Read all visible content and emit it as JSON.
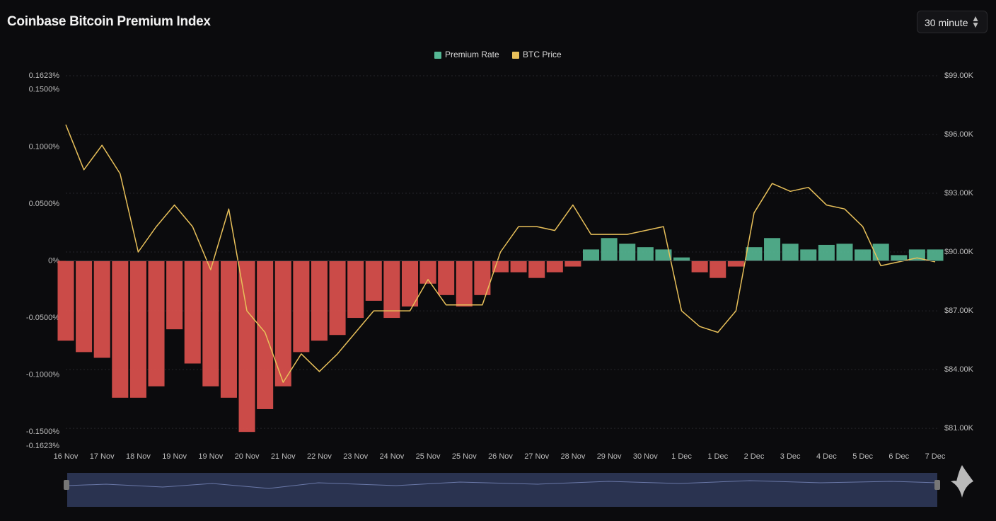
{
  "chart_data": {
    "type": "bar-line",
    "title": "Coinbase Bitcoin Premium Index",
    "interval": "30 minute",
    "x": [
      0,
      0.5,
      1,
      1.5,
      2,
      2.5,
      3,
      3.5,
      4,
      4.5,
      5,
      5.5,
      6,
      6.5,
      7,
      7.5,
      8,
      8.5,
      9,
      9.5,
      10,
      10.5,
      11,
      11.5,
      12,
      12.5,
      13,
      13.5,
      14,
      14.5,
      15,
      15.5,
      16,
      16.5,
      17,
      17.5,
      18,
      18.5,
      19,
      19.5,
      20,
      20.5,
      21,
      21.5,
      22,
      22.5,
      23,
      23.5,
      24
    ],
    "xlim": [
      0,
      24
    ],
    "xticks": [
      {
        "value": 0,
        "label": "16 Nov"
      },
      {
        "value": 1,
        "label": "17 Nov"
      },
      {
        "value": 2,
        "label": "18 Nov"
      },
      {
        "value": 3,
        "label": "19 Nov"
      },
      {
        "value": 4,
        "label": "19 Nov"
      },
      {
        "value": 5,
        "label": "20 Nov"
      },
      {
        "value": 6,
        "label": "21 Nov"
      },
      {
        "value": 7,
        "label": "22 Nov"
      },
      {
        "value": 8,
        "label": "23 Nov"
      },
      {
        "value": 9,
        "label": "24 Nov"
      },
      {
        "value": 10,
        "label": "25 Nov"
      },
      {
        "value": 11,
        "label": "25 Nov"
      },
      {
        "value": 12,
        "label": "26 Nov"
      },
      {
        "value": 13,
        "label": "27 Nov"
      },
      {
        "value": 14,
        "label": "28 Nov"
      },
      {
        "value": 15,
        "label": "29 Nov"
      },
      {
        "value": 16,
        "label": "30 Nov"
      },
      {
        "value": 17,
        "label": "1 Dec"
      },
      {
        "value": 18,
        "label": "1 Dec"
      },
      {
        "value": 19,
        "label": "2 Dec"
      },
      {
        "value": 20,
        "label": "3 Dec"
      },
      {
        "value": 21,
        "label": "4 Dec"
      },
      {
        "value": 22,
        "label": "5 Dec"
      },
      {
        "value": 23,
        "label": "6 Dec"
      },
      {
        "value": 24,
        "label": "7 Dec"
      }
    ],
    "ylim": [
      -0.1623,
      0.1623
    ],
    "yticks": [
      {
        "value": 0.1623,
        "label": "0.1623%"
      },
      {
        "value": 0.15,
        "label": "0.1500%"
      },
      {
        "value": 0.1,
        "label": "0.1000%"
      },
      {
        "value": 0.05,
        "label": "0.0500%"
      },
      {
        "value": 0,
        "label": "0%"
      },
      {
        "value": -0.05,
        "label": "-0.0500%"
      },
      {
        "value": -0.1,
        "label": "-0.1000%"
      },
      {
        "value": -0.15,
        "label": "-0.1500%"
      },
      {
        "value": -0.1623,
        "label": "-0.1623%"
      }
    ],
    "y2lim": [
      80100,
      99000
    ],
    "y2ticks": [
      {
        "value": 99000,
        "label": "$99.00K"
      },
      {
        "value": 96000,
        "label": "$96.00K"
      },
      {
        "value": 93000,
        "label": "$93.00K"
      },
      {
        "value": 90000,
        "label": "$90.00K"
      },
      {
        "value": 87000,
        "label": "$87.00K"
      },
      {
        "value": 84000,
        "label": "$84.00K"
      },
      {
        "value": 81000,
        "label": "$81.00K"
      }
    ],
    "grid": true,
    "legend": "top",
    "series": [
      {
        "name": "Premium Rate",
        "type": "bar",
        "color": "#55b894",
        "negative_color": "#e0524f",
        "values": [
          -0.07,
          -0.08,
          -0.085,
          -0.12,
          -0.12,
          -0.11,
          -0.06,
          -0.09,
          -0.11,
          -0.12,
          -0.15,
          -0.13,
          -0.11,
          -0.08,
          -0.07,
          -0.065,
          -0.05,
          -0.035,
          -0.05,
          -0.04,
          -0.02,
          -0.03,
          -0.04,
          -0.03,
          -0.01,
          -0.01,
          -0.015,
          -0.01,
          -0.005,
          0.01,
          0.02,
          0.015,
          0.012,
          0.01,
          0.003,
          -0.01,
          -0.015,
          -0.005,
          0.012,
          0.02,
          0.015,
          0.01,
          0.014,
          0.015,
          0.01,
          0.015,
          0.005,
          0.01,
          0.01
        ]
      },
      {
        "name": "BTC Price",
        "type": "line",
        "axis": "y2",
        "color": "#e8c05a",
        "values": [
          96500,
          94200,
          95450,
          94000,
          90000,
          91300,
          92400,
          91300,
          89100,
          92200,
          87000,
          85900,
          83350,
          84800,
          83900,
          84800,
          85900,
          87000,
          87000,
          87000,
          88600,
          87300,
          87300,
          87300,
          90000,
          91300,
          91300,
          91100,
          92400,
          90900,
          90900,
          90900,
          91100,
          91300,
          87000,
          86200,
          85900,
          87000,
          92000,
          93500,
          93100,
          93300,
          92400,
          92200,
          91300,
          89300,
          89500,
          89700,
          89500
        ]
      }
    ]
  }
}
